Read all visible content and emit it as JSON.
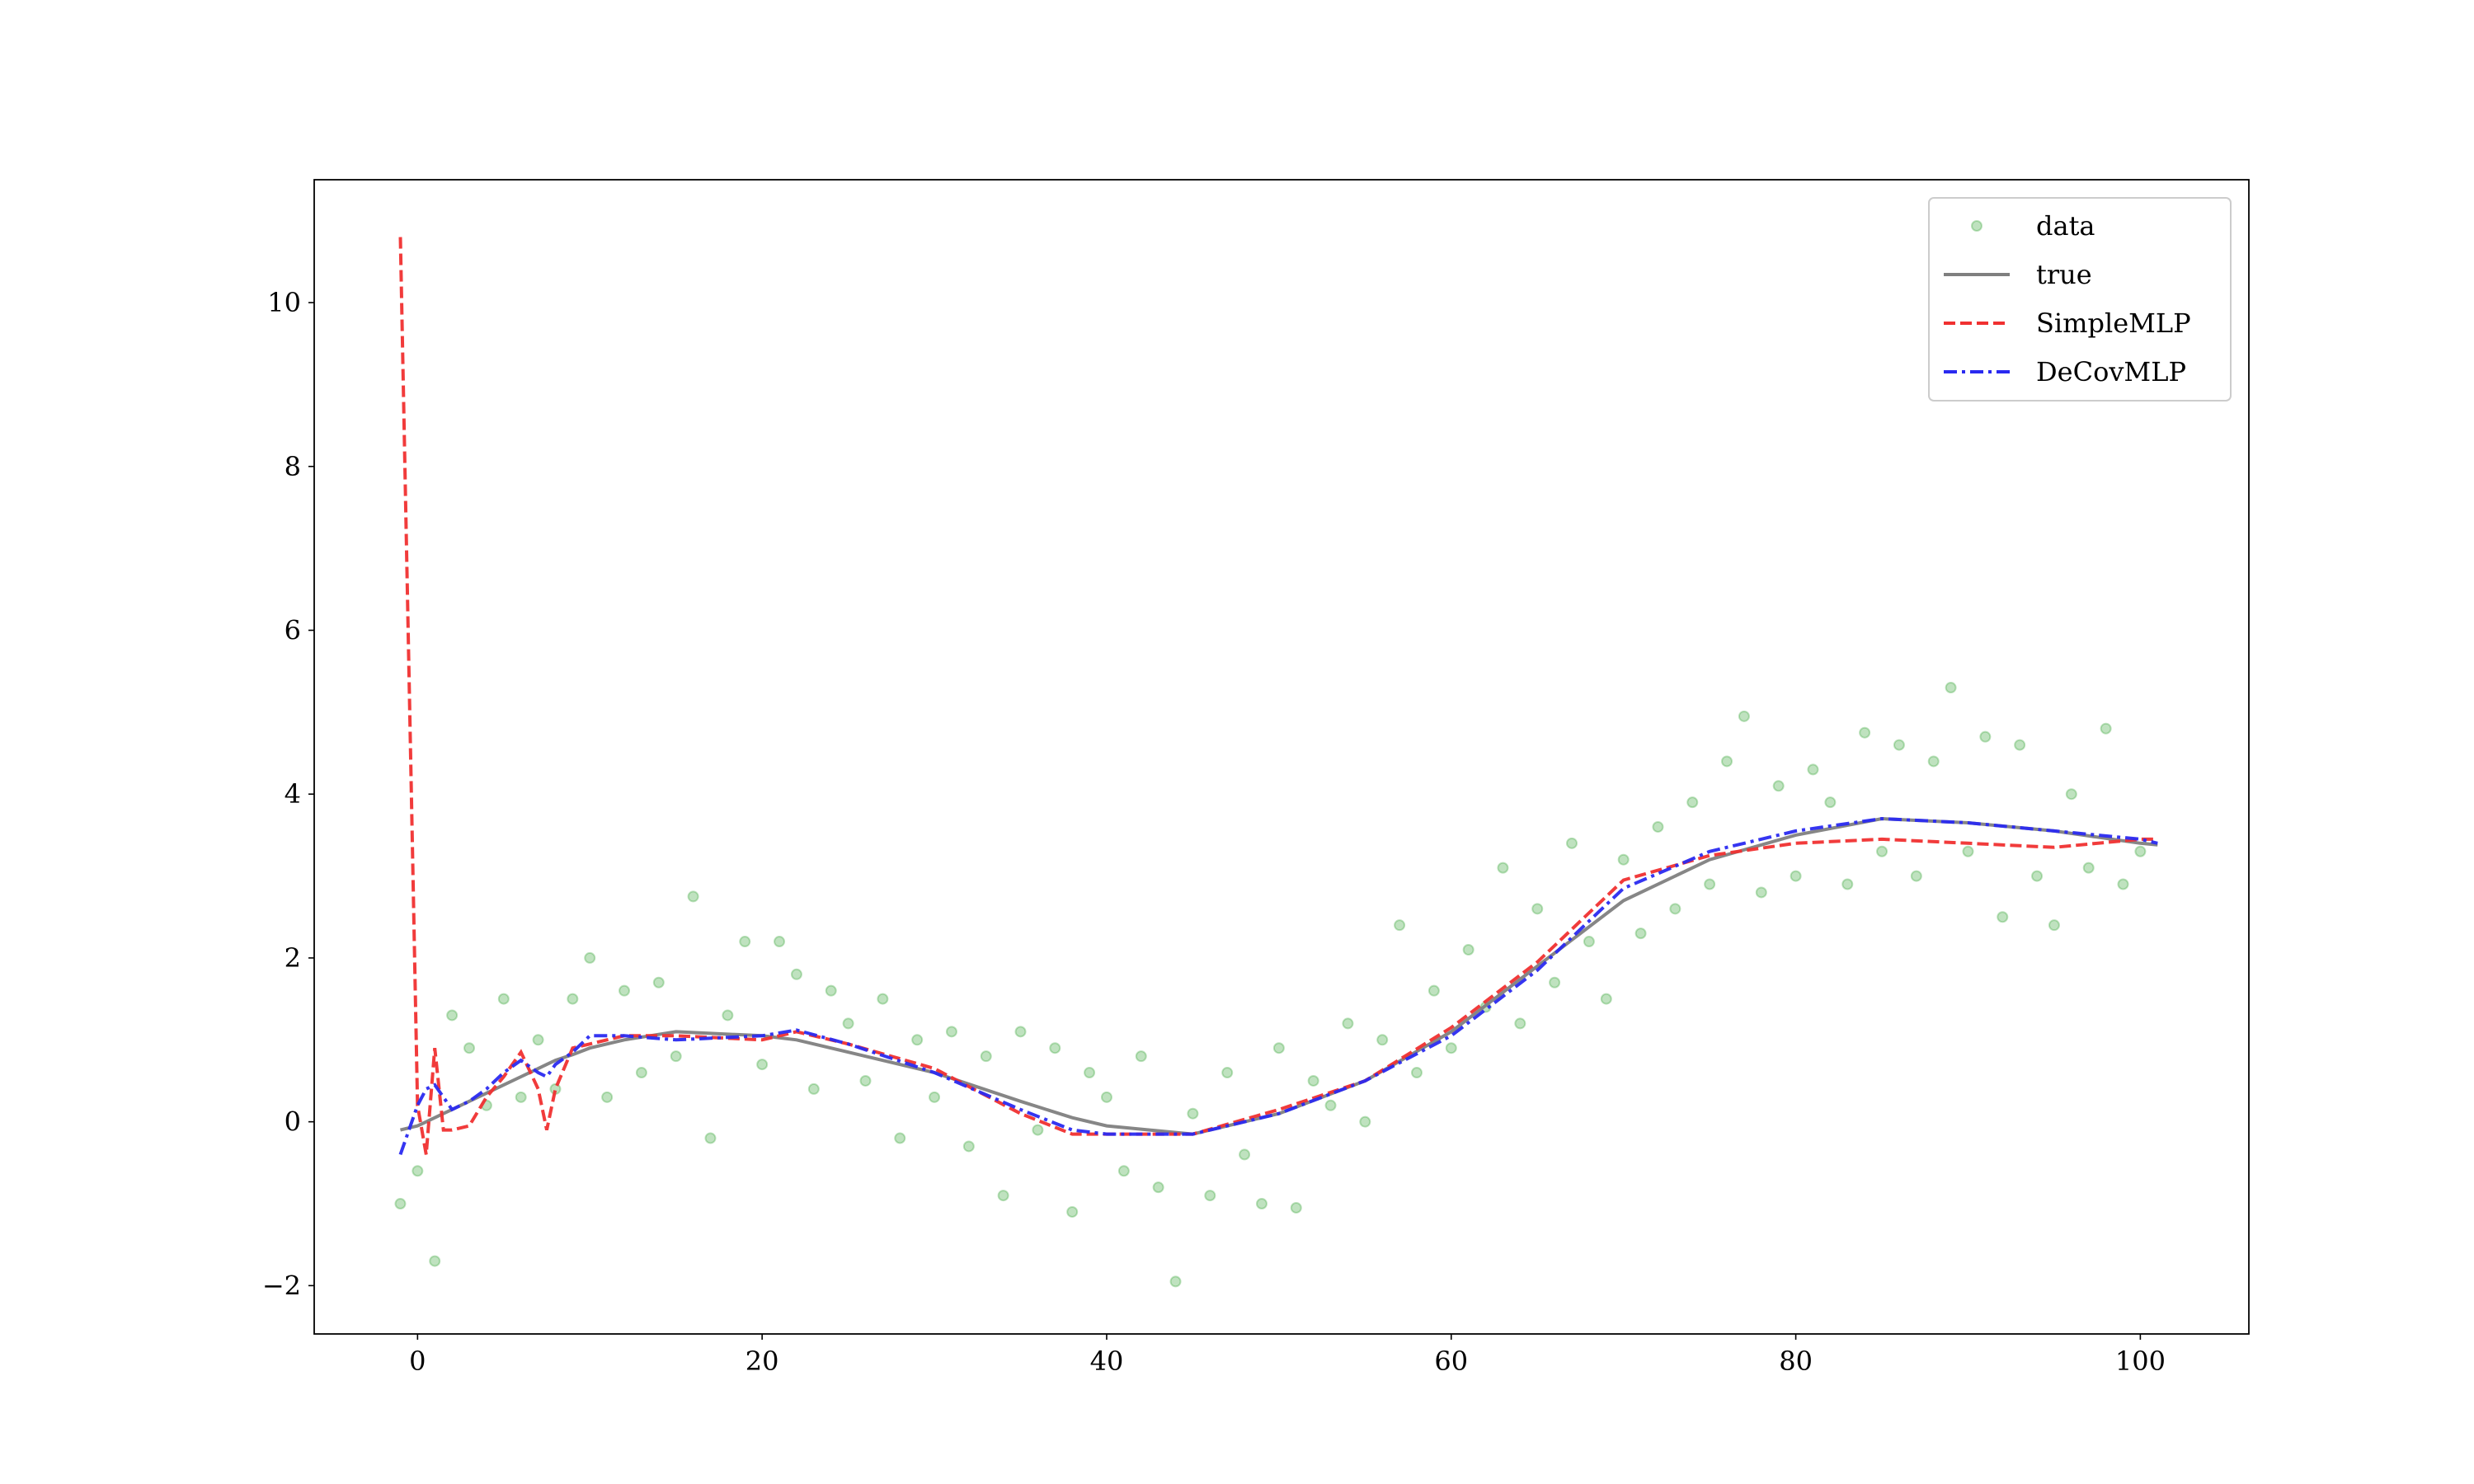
{
  "chart_data": {
    "type": "line",
    "xlim": [
      -6,
      106.3
    ],
    "ylim": [
      -2.59,
      11.5
    ],
    "xticks": [
      0,
      20,
      40,
      60,
      80,
      100
    ],
    "yticks": [
      {
        "value": -2,
        "label": "−2"
      },
      0,
      2,
      4,
      6,
      8,
      10
    ],
    "legend": "upper right",
    "x": [
      -1,
      0,
      0.5,
      1,
      1.5,
      2,
      3,
      4,
      5,
      6,
      7,
      7.5,
      8,
      9,
      10,
      12,
      15,
      20,
      22,
      25,
      30,
      35,
      38,
      40,
      45,
      50,
      55,
      60,
      65,
      70,
      75,
      80,
      85,
      90,
      95,
      100,
      101
    ],
    "series": [
      {
        "name": "data",
        "kind": "scatter",
        "color": "#2ca02c",
        "x": [
          -1,
          0,
          1,
          2,
          3,
          4,
          5,
          6,
          7,
          8,
          9,
          10,
          11,
          12,
          13,
          14,
          15,
          16,
          17,
          18,
          19,
          20,
          21,
          22,
          23,
          24,
          25,
          26,
          27,
          28,
          29,
          30,
          31,
          32,
          33,
          34,
          35,
          36,
          37,
          38,
          39,
          40,
          41,
          42,
          43,
          44,
          45,
          46,
          47,
          48,
          49,
          50,
          51,
          52,
          53,
          54,
          55,
          56,
          57,
          58,
          59,
          60,
          61,
          62,
          63,
          64,
          65,
          66,
          67,
          68,
          69,
          70,
          71,
          72,
          73,
          74,
          75,
          76,
          77,
          78,
          79,
          80,
          81,
          82,
          83,
          84,
          85,
          86,
          87,
          88,
          89,
          90,
          91,
          92,
          93,
          94,
          95,
          96,
          97,
          98,
          99,
          100
        ],
        "values": [
          -1.0,
          -0.6,
          -1.7,
          1.3,
          0.9,
          0.2,
          1.5,
          0.3,
          1.0,
          0.4,
          1.5,
          2.0,
          0.3,
          1.6,
          0.6,
          1.7,
          0.8,
          2.75,
          -0.2,
          1.3,
          2.2,
          0.7,
          2.2,
          1.8,
          0.4,
          1.6,
          1.2,
          0.5,
          1.5,
          -0.2,
          1.0,
          0.3,
          1.1,
          -0.3,
          0.8,
          -0.9,
          1.1,
          -0.1,
          0.9,
          -1.1,
          0.6,
          0.3,
          -0.6,
          0.8,
          -0.8,
          -1.95,
          0.1,
          -0.9,
          0.6,
          -0.4,
          -1.0,
          0.9,
          -1.05,
          0.5,
          0.2,
          1.2,
          0.0,
          1.0,
          2.4,
          0.6,
          1.6,
          0.9,
          2.1,
          1.4,
          3.1,
          1.2,
          2.6,
          1.7,
          3.4,
          2.2,
          1.5,
          3.2,
          2.3,
          3.6,
          2.6,
          3.9,
          2.9,
          4.4,
          4.95,
          2.8,
          4.1,
          3.0,
          4.3,
          3.9,
          2.9,
          4.75,
          3.3,
          4.6,
          3.0,
          4.4,
          5.3,
          3.3,
          4.7,
          2.5,
          4.6,
          3.0,
          2.4,
          4.0,
          3.1,
          4.8,
          2.9,
          3.3
        ]
      },
      {
        "name": "true",
        "kind": "line",
        "linestyle": "solid",
        "color": "#7f7f7f",
        "values": [
          -0.1,
          -0.05,
          0,
          0.05,
          0.1,
          0.15,
          0.25,
          0.35,
          0.45,
          0.55,
          0.65,
          0.7,
          0.75,
          0.82,
          0.9,
          1.0,
          1.1,
          1.05,
          1.0,
          0.85,
          0.6,
          0.25,
          0.05,
          -0.05,
          -0.15,
          0.1,
          0.5,
          1.1,
          1.9,
          2.7,
          3.2,
          3.5,
          3.7,
          3.65,
          3.55,
          3.4,
          3.38
        ]
      },
      {
        "name": "SimpleMLP",
        "kind": "line",
        "linestyle": "dashed",
        "color": "#f03030",
        "values": [
          10.8,
          0.2,
          -0.4,
          0.9,
          -0.1,
          -0.1,
          -0.05,
          0.3,
          0.55,
          0.85,
          0.4,
          -0.1,
          0.4,
          0.9,
          0.95,
          1.05,
          1.05,
          1.0,
          1.1,
          0.95,
          0.65,
          0.1,
          -0.15,
          -0.15,
          -0.15,
          0.15,
          0.5,
          1.15,
          1.95,
          2.95,
          3.25,
          3.4,
          3.45,
          3.4,
          3.35,
          3.45,
          3.45
        ]
      },
      {
        "name": "DeCovMLP",
        "kind": "line",
        "linestyle": "dashdot",
        "color": "#2a2af0",
        "values": [
          -0.4,
          0.2,
          0.4,
          0.45,
          0.3,
          0.15,
          0.25,
          0.4,
          0.6,
          0.75,
          0.6,
          0.55,
          0.7,
          0.85,
          1.05,
          1.05,
          1.0,
          1.05,
          1.12,
          0.95,
          0.6,
          0.15,
          -0.1,
          -0.15,
          -0.15,
          0.1,
          0.5,
          1.05,
          1.85,
          2.85,
          3.3,
          3.55,
          3.7,
          3.65,
          3.55,
          3.45,
          3.4
        ]
      }
    ]
  }
}
